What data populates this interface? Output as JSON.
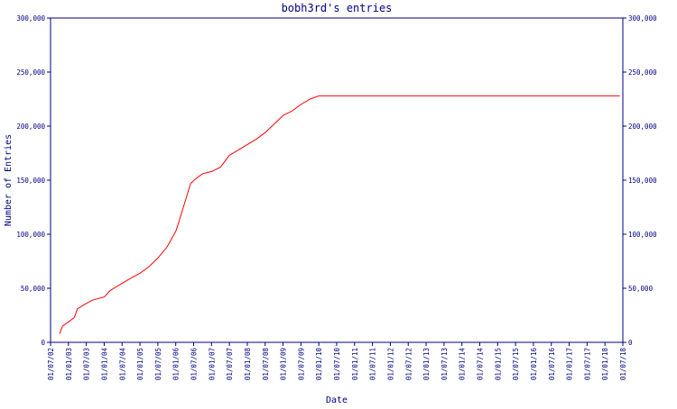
{
  "chart_data": {
    "type": "line",
    "title": "bobh3rd's entries",
    "xlabel": "Date",
    "ylabel": "Number of Entries",
    "x_ticks": [
      "01/07/02",
      "01/01/03",
      "01/07/03",
      "01/01/04",
      "01/07/04",
      "01/01/05",
      "01/07/05",
      "01/01/06",
      "01/07/06",
      "01/01/07",
      "01/07/07",
      "01/01/08",
      "01/07/08",
      "01/01/09",
      "01/07/09",
      "01/01/10",
      "01/07/10",
      "01/01/11",
      "01/07/11",
      "01/01/12",
      "01/07/12",
      "01/01/13",
      "01/07/13",
      "01/01/14",
      "01/07/14",
      "01/01/15",
      "01/07/15",
      "01/01/16",
      "01/07/16",
      "01/01/17",
      "01/07/17",
      "01/01/18",
      "01/07/18"
    ],
    "y_ticks": [
      "0",
      "50,000",
      "100,000",
      "150,000",
      "200,000",
      "250,000",
      "300,000"
    ],
    "ylim": [
      0,
      300000
    ],
    "xlim": [
      "2002-07-01",
      "2018-07-01"
    ],
    "grid": false,
    "series": [
      {
        "color": "#ff0000",
        "points": [
          [
            "2002-10-01",
            8000
          ],
          [
            "2002-11-01",
            15000
          ],
          [
            "2003-01-01",
            19000
          ],
          [
            "2003-03-01",
            23000
          ],
          [
            "2003-04-01",
            31000
          ],
          [
            "2003-07-01",
            36000
          ],
          [
            "2003-09-01",
            39000
          ],
          [
            "2004-01-01",
            42000
          ],
          [
            "2004-03-01",
            48000
          ],
          [
            "2004-06-01",
            53000
          ],
          [
            "2004-09-01",
            58000
          ],
          [
            "2005-01-01",
            64000
          ],
          [
            "2005-04-01",
            70000
          ],
          [
            "2005-07-01",
            78000
          ],
          [
            "2005-10-01",
            88000
          ],
          [
            "2006-01-01",
            103000
          ],
          [
            "2006-03-01",
            120000
          ],
          [
            "2006-05-01",
            138000
          ],
          [
            "2006-06-01",
            147000
          ],
          [
            "2006-08-01",
            152000
          ],
          [
            "2006-10-01",
            156000
          ],
          [
            "2007-01-01",
            158000
          ],
          [
            "2007-04-01",
            162000
          ],
          [
            "2007-07-01",
            173000
          ],
          [
            "2007-10-01",
            178000
          ],
          [
            "2008-01-01",
            183000
          ],
          [
            "2008-04-01",
            188000
          ],
          [
            "2008-07-01",
            194000
          ],
          [
            "2008-10-01",
            202000
          ],
          [
            "2009-01-01",
            210000
          ],
          [
            "2009-04-01",
            214000
          ],
          [
            "2009-07-01",
            220000
          ],
          [
            "2009-10-01",
            225000
          ],
          [
            "2010-01-01",
            228000
          ],
          [
            "2018-06-01",
            228000
          ]
        ]
      }
    ]
  }
}
